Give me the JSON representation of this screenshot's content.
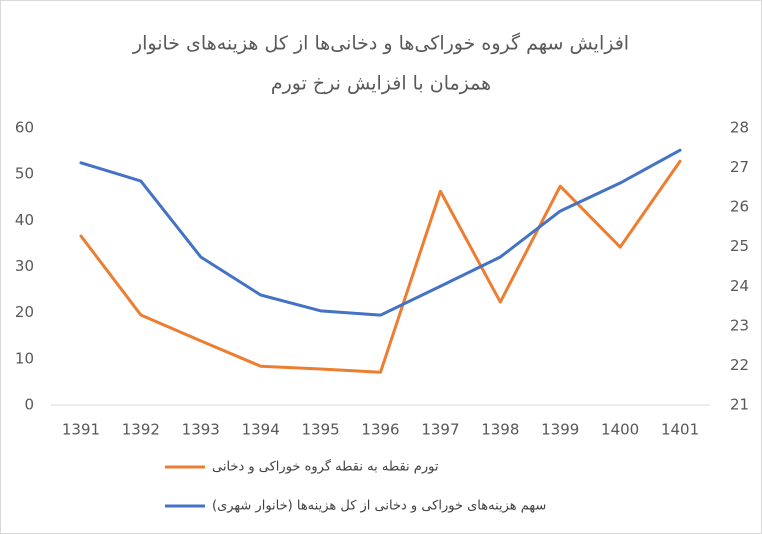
{
  "chart_data": {
    "type": "line",
    "title": [
      "افزایش سهم گروه خوراکی‌ها و دخانی‌ها از کل هزینه‌های خانوار",
      "همزمان با افزایش نرخ تورم"
    ],
    "categories": [
      "1391",
      "1392",
      "1393",
      "1394",
      "1395",
      "1396",
      "1397",
      "1398",
      "1399",
      "1400",
      "1401"
    ],
    "series": [
      {
        "name": "تورم نقطه به نقطه گروه خوراکی و دخانی",
        "color": "#ed7d31",
        "values": [
          36.6,
          19.5,
          13.9,
          8.4,
          7.8,
          7.1,
          46.3,
          22.3,
          47.4,
          34.2,
          52.8
        ]
      },
      {
        "name": "سهم هزینه‌های خوراکی و دخانی از کل هزینه‌ها (خانوار شهری)",
        "color": "#4472c4",
        "axis": "y2",
        "values": [
          27.12,
          26.66,
          24.74,
          23.78,
          23.38,
          23.27,
          24.0,
          24.74,
          25.9,
          26.61,
          27.44
        ]
      }
    ],
    "ylim": [
      0,
      60
    ],
    "yticks": [
      0,
      10,
      20,
      30,
      40,
      50,
      60
    ],
    "y2lim": [
      21,
      28
    ],
    "y2ticks": [
      21,
      22,
      23,
      24,
      25,
      26,
      27,
      28
    ],
    "grid": false
  }
}
